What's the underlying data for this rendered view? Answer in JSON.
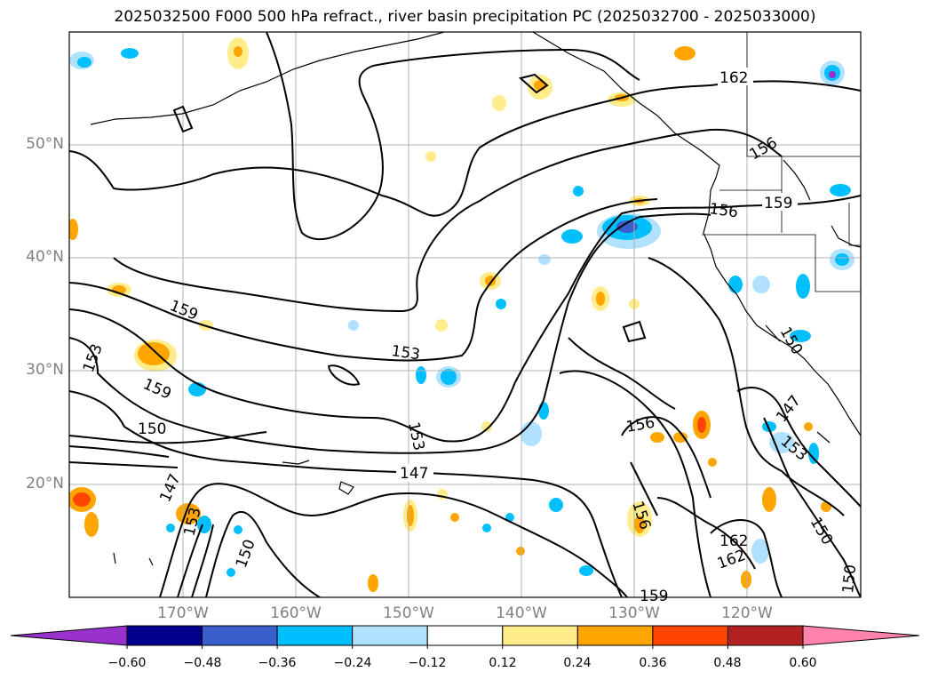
{
  "title": "2025032500 F000 500 hPa refract., river basin precipitation PC (2025032700 - 2025033000)",
  "lat_labels": [
    "50°N",
    "40°N",
    "30°N",
    "20°N"
  ],
  "lon_labels": [
    "170°W",
    "160°W",
    "150°W",
    "140°W",
    "130°W",
    "120°W"
  ],
  "contour_labels": [
    "162",
    "156",
    "159",
    "156",
    "159",
    "153",
    "153",
    "150",
    "159",
    "153",
    "150",
    "147",
    "147",
    "153",
    "156",
    "156",
    "162",
    "162",
    "150",
    "147",
    "153",
    "150",
    "150",
    "159"
  ],
  "colorbar": {
    "ticks": [
      "−0.60",
      "−0.48",
      "−0.36",
      "−0.24",
      "−0.12",
      "0.12",
      "0.24",
      "0.36",
      "0.48",
      "0.60"
    ],
    "colors": [
      "#9932cc",
      "#00008b",
      "#3a5fcd",
      "#00bfff",
      "#b0e2ff",
      "#ffffff",
      "#ffec8b",
      "#ffa500",
      "#ff4500",
      "#b22222",
      "#ff82ab"
    ]
  }
}
